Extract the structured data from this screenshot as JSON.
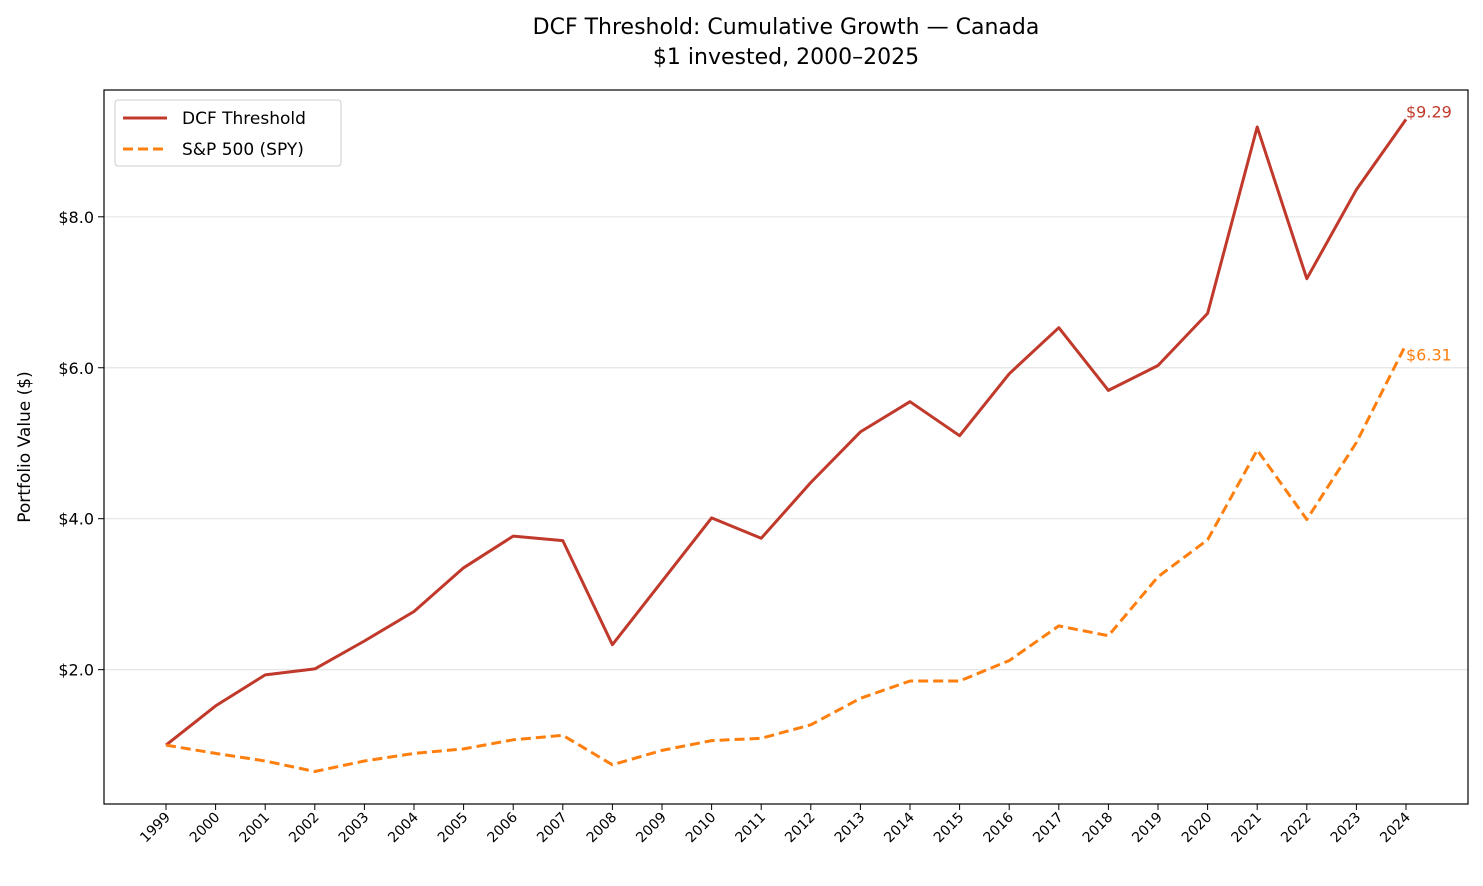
{
  "chart_data": {
    "type": "line",
    "title": "DCF Threshold: Cumulative Growth — Canada",
    "subtitle": "$1 invested, 2000–2025",
    "xlabel": "",
    "ylabel": "Portfolio Value ($)",
    "x": [
      1999,
      2000,
      2001,
      2002,
      2003,
      2004,
      2005,
      2006,
      2007,
      2008,
      2009,
      2010,
      2011,
      2012,
      2013,
      2014,
      2015,
      2016,
      2017,
      2018,
      2019,
      2020,
      2021,
      2022,
      2023,
      2024
    ],
    "xlim": [
      1997.75,
      2025.25
    ],
    "ylim": [
      0.22,
      9.68
    ],
    "yticks": [
      2.0,
      4.0,
      6.0,
      8.0
    ],
    "ytick_labels": [
      "$2.0",
      "$4.0",
      "$6.0",
      "$8.0"
    ],
    "grid": "horizontal",
    "legend_position": "top-left",
    "series": [
      {
        "name": "DCF Threshold",
        "color": "#c0392b",
        "style": "solid",
        "values": [
          1.0,
          1.52,
          1.93,
          2.01,
          2.38,
          2.77,
          3.35,
          3.77,
          3.71,
          2.33,
          3.17,
          4.01,
          3.74,
          4.48,
          5.15,
          5.55,
          5.1,
          5.92,
          6.53,
          5.7,
          6.03,
          6.72,
          9.19,
          7.18,
          8.36,
          9.29
        ],
        "end_label": "$9.29"
      },
      {
        "name": "S&P 500 (SPY)",
        "color": "#ff7f0e",
        "style": "dashed",
        "values": [
          1.0,
          0.89,
          0.79,
          0.65,
          0.79,
          0.89,
          0.95,
          1.07,
          1.13,
          0.74,
          0.93,
          1.06,
          1.09,
          1.27,
          1.62,
          1.85,
          1.85,
          2.12,
          2.58,
          2.45,
          3.23,
          3.72,
          4.91,
          3.99,
          5.01,
          6.31
        ],
        "end_label": "$6.31"
      }
    ]
  }
}
